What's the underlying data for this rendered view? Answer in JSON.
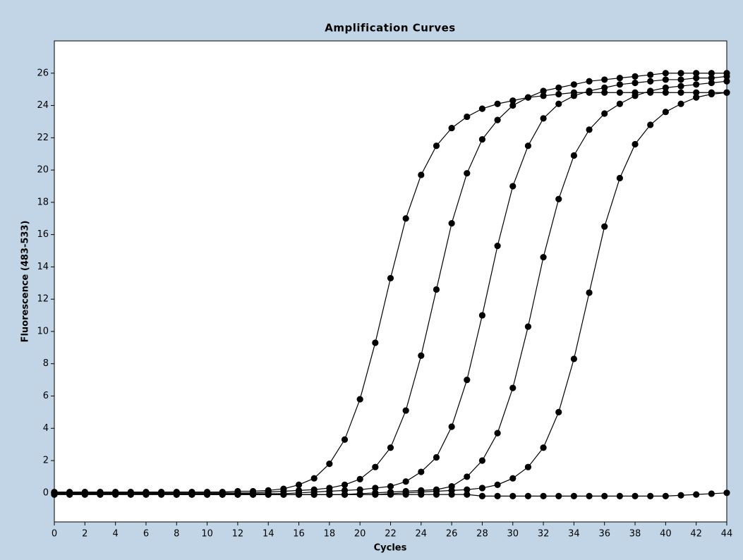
{
  "chart_data": {
    "type": "line",
    "title": "Amplification Curves",
    "x_label": "Cycles",
    "y_label": "Fluorescence (483-533)",
    "x": [
      0,
      1,
      2,
      3,
      4,
      5,
      6,
      7,
      8,
      9,
      10,
      11,
      12,
      13,
      14,
      15,
      16,
      17,
      18,
      19,
      20,
      21,
      22,
      23,
      24,
      25,
      26,
      27,
      28,
      29,
      30,
      31,
      32,
      33,
      34,
      35,
      36,
      37,
      38,
      39,
      40,
      41,
      42,
      43,
      44
    ],
    "color": "#000000",
    "markers": true,
    "series": [
      {
        "values": [
          0.05,
          0.05,
          0.05,
          0.05,
          0.05,
          0.05,
          0.05,
          0.05,
          0.05,
          0.05,
          0.05,
          0.05,
          0.1,
          0.1,
          0.15,
          0.25,
          0.5,
          0.9,
          1.8,
          3.3,
          5.8,
          9.3,
          13.3,
          17.0,
          19.7,
          21.5,
          22.6,
          23.3,
          23.8,
          24.1,
          24.3,
          24.5,
          24.6,
          24.7,
          24.8,
          24.8,
          24.8,
          24.8,
          24.8,
          24.8,
          24.8,
          24.8,
          24.8,
          24.8,
          24.8
        ]
      },
      {
        "values": [
          0,
          0,
          0,
          0,
          0,
          0,
          0,
          0,
          0,
          0,
          0,
          0,
          0,
          0,
          0.05,
          0.1,
          0.15,
          0.2,
          0.3,
          0.5,
          0.85,
          1.6,
          2.8,
          5.1,
          8.5,
          12.6,
          16.7,
          19.8,
          21.9,
          23.1,
          24.0,
          24.5,
          24.9,
          25.1,
          25.3,
          25.5,
          25.6,
          25.7,
          25.8,
          25.9,
          26.0,
          26.0,
          26.0,
          26.0,
          26.0
        ]
      },
      {
        "values": [
          -0.05,
          -0.05,
          -0.05,
          -0.05,
          -0.05,
          -0.05,
          -0.05,
          -0.05,
          -0.05,
          -0.05,
          -0.05,
          -0.05,
          -0.05,
          -0.05,
          -0.05,
          -0.05,
          0,
          0.05,
          0.1,
          0.15,
          0.2,
          0.3,
          0.4,
          0.7,
          1.3,
          2.2,
          4.1,
          7.0,
          11.0,
          15.3,
          19.0,
          21.5,
          23.2,
          24.1,
          24.6,
          24.9,
          25.1,
          25.3,
          25.4,
          25.5,
          25.6,
          25.6,
          25.7,
          25.7,
          25.8
        ]
      },
      {
        "values": [
          -0.1,
          -0.1,
          -0.1,
          -0.1,
          -0.1,
          -0.1,
          -0.1,
          -0.1,
          -0.1,
          -0.1,
          -0.1,
          -0.1,
          -0.1,
          -0.1,
          -0.1,
          -0.1,
          -0.1,
          -0.1,
          -0.1,
          -0.1,
          -0.05,
          0,
          0.05,
          0.1,
          0.15,
          0.2,
          0.4,
          1.0,
          2.0,
          3.7,
          6.5,
          10.3,
          14.6,
          18.2,
          20.9,
          22.5,
          23.5,
          24.1,
          24.6,
          24.9,
          25.1,
          25.2,
          25.3,
          25.4,
          25.5
        ]
      },
      {
        "values": [
          -0.1,
          -0.1,
          -0.1,
          -0.1,
          -0.1,
          -0.1,
          -0.1,
          -0.1,
          -0.1,
          -0.1,
          -0.1,
          -0.1,
          -0.1,
          -0.1,
          -0.1,
          -0.1,
          -0.1,
          -0.1,
          -0.1,
          -0.1,
          -0.1,
          -0.1,
          -0.05,
          0,
          0.05,
          0.1,
          0.15,
          0.2,
          0.3,
          0.5,
          0.9,
          1.6,
          2.8,
          5.0,
          8.3,
          12.4,
          16.5,
          19.5,
          21.6,
          22.8,
          23.6,
          24.1,
          24.5,
          24.7,
          24.8
        ]
      },
      {
        "values": [
          0,
          0,
          0,
          0,
          0,
          0,
          0,
          0,
          -0.1,
          -0.1,
          -0.1,
          -0.1,
          -0.1,
          -0.1,
          -0.1,
          -0.1,
          -0.1,
          -0.1,
          -0.1,
          -0.1,
          -0.1,
          -0.1,
          -0.1,
          -0.1,
          -0.1,
          -0.1,
          -0.1,
          -0.1,
          -0.2,
          -0.2,
          -0.2,
          -0.2,
          -0.2,
          -0.2,
          -0.2,
          -0.2,
          -0.2,
          -0.2,
          -0.2,
          -0.2,
          -0.2,
          -0.15,
          -0.1,
          -0.05,
          0
        ]
      }
    ],
    "xlim": [
      0,
      44
    ],
    "xticks": [
      0,
      2,
      4,
      6,
      8,
      10,
      12,
      14,
      16,
      18,
      20,
      22,
      24,
      26,
      28,
      30,
      32,
      34,
      36,
      38,
      40,
      42,
      44
    ],
    "ylim": [
      -1.8,
      28
    ],
    "yticks": [
      0,
      2,
      4,
      6,
      8,
      10,
      12,
      14,
      16,
      18,
      20,
      22,
      24,
      26
    ]
  }
}
